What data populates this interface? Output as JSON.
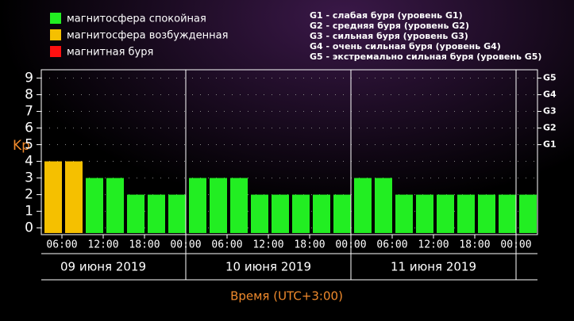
{
  "chart_data": {
    "type": "bar",
    "y_label": "Kp",
    "x_label": "Время (UTC+3:00)",
    "legend": [
      {
        "label": "магнитосфера спокойная",
        "color": "#22ee22"
      },
      {
        "label": "магнитосфера возбужденная",
        "color": "#f5c000"
      },
      {
        "label": "магнитная буря",
        "color": "#ff1010"
      }
    ],
    "storm_scale": [
      "G1 - слабая буря (уровень G1)",
      "G2 - средняя буря (уровень G2)",
      "G3 - сильная буря (уровень G3)",
      "G4 - очень сильная буря (уровень G4)",
      "G5 - экстремально сильная буря (уровень G5)"
    ],
    "right_ticks": [
      {
        "value": 5,
        "label": "G1"
      },
      {
        "value": 6,
        "label": "G2"
      },
      {
        "value": 7,
        "label": "G3"
      },
      {
        "value": 8,
        "label": "G4"
      },
      {
        "value": 9,
        "label": "G5"
      }
    ],
    "values": [
      4,
      4,
      3,
      3,
      2,
      2,
      2,
      3,
      3,
      3,
      2,
      2,
      2,
      2,
      2,
      3,
      3,
      2,
      2,
      2,
      2,
      2,
      2,
      2
    ],
    "bar_colors": [
      "#f5c000",
      "#f5c000",
      "#22ee22",
      "#22ee22",
      "#22ee22",
      "#22ee22",
      "#22ee22",
      "#22ee22",
      "#22ee22",
      "#22ee22",
      "#22ee22",
      "#22ee22",
      "#22ee22",
      "#22ee22",
      "#22ee22",
      "#22ee22",
      "#22ee22",
      "#22ee22",
      "#22ee22",
      "#22ee22",
      "#22ee22",
      "#22ee22",
      "#22ee22",
      "#22ee22"
    ],
    "xtick_labels": [
      "06:00",
      "12:00",
      "18:00",
      "00:00",
      "06:00",
      "12:00",
      "18:00",
      "00:00",
      "06:00",
      "12:00",
      "18:00",
      "00:00"
    ],
    "days": [
      "09 июня 2019",
      "10 июня 2019",
      "11 июня 2019"
    ],
    "ylim": [
      -0.4,
      9.5
    ],
    "yticks": [
      0,
      1,
      2,
      3,
      4,
      5,
      6,
      7,
      8,
      9
    ],
    "grid": true
  }
}
